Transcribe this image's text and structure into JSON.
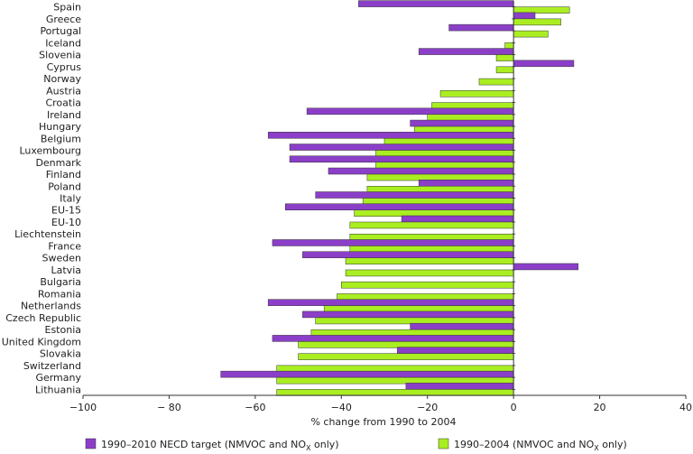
{
  "chart_data": {
    "type": "bar",
    "orientation": "horizontal",
    "title": "",
    "xlabel": "% change from 1990 to 2004",
    "ylabel": "",
    "xlim": [
      -100,
      40
    ],
    "xticks": [
      -100,
      -80,
      -60,
      -40,
      -20,
      0,
      20,
      40
    ],
    "xtick_labels": [
      "−100",
      "− 80",
      "−60",
      "−40",
      "−20",
      "0",
      "20",
      "40"
    ],
    "grid": false,
    "legend_position": "bottom",
    "categories": [
      "Spain",
      "Greece",
      "Portugal",
      "Iceland",
      "Slovenia",
      "Cyprus",
      "Norway",
      "Austria",
      "Croatia",
      "Ireland",
      "Hungary",
      "Belgium",
      "Luxembourg",
      "Denmark",
      "Finland",
      "Poland",
      "Italy",
      "EU-15",
      "EU-10",
      "Liechtenstein",
      "France",
      "Sweden",
      "Latvia",
      "Bulgaria",
      "Romania",
      "Netherlands",
      "Czech Republic",
      "Estonia",
      "United Kingdom",
      "Slovakia",
      "Switzerland",
      "Germany",
      "Lithuania"
    ],
    "series": [
      {
        "name_prefix": "1990–2010 NECD target (NMVOC and NO",
        "name_sub": "X",
        "name_suffix": " only)",
        "color": "#8b3fc8",
        "values": [
          -36,
          5,
          -15,
          null,
          -22,
          14,
          null,
          null,
          null,
          -48,
          -24,
          -57,
          -52,
          -52,
          -43,
          -22,
          -46,
          -53,
          -26,
          null,
          -56,
          -49,
          15,
          null,
          null,
          -57,
          -49,
          -24,
          -56,
          -27,
          null,
          -68,
          -25
        ]
      },
      {
        "name_prefix": "1990–2004 (NMVOC and NO",
        "name_sub": "X",
        "name_suffix": " only)",
        "color": "#aaee22",
        "values": [
          13,
          11,
          8,
          -2,
          -4,
          -4,
          -8,
          -17,
          -19,
          -20,
          -23,
          -30,
          -32,
          -32,
          -34,
          -34,
          -35,
          -37,
          -38,
          -38,
          -38,
          -39,
          -39,
          -40,
          -41,
          -44,
          -46,
          -47,
          -50,
          -50,
          -55,
          -55,
          -55
        ]
      }
    ]
  }
}
